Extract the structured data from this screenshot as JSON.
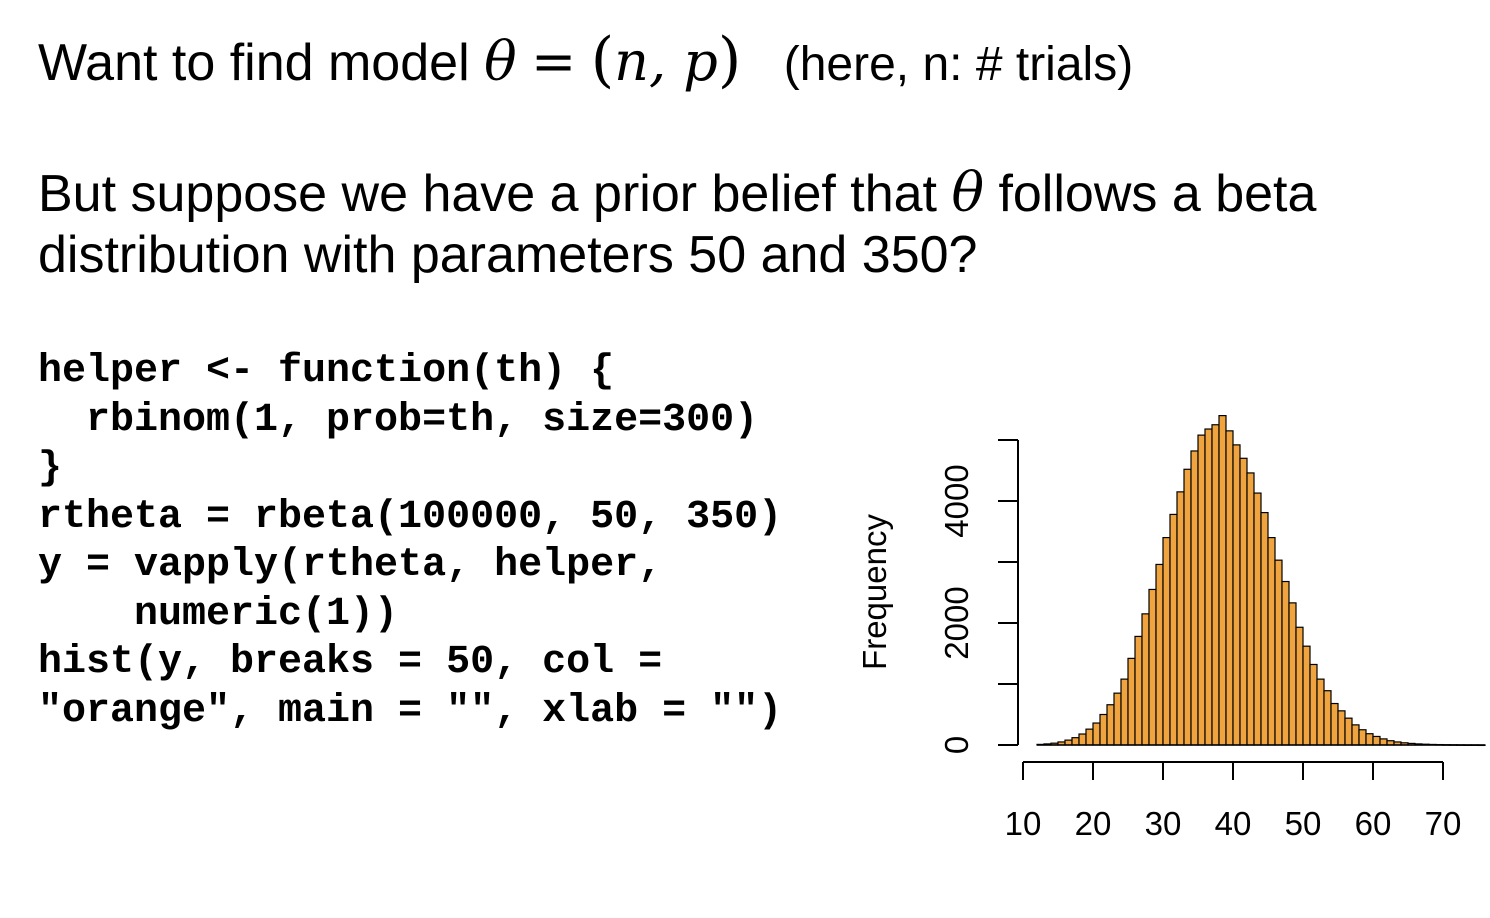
{
  "heading": {
    "prefix": "Want to find model",
    "theta": "θ",
    "equals": "=",
    "open_paren": "(",
    "tuple": "n, p",
    "close_paren": ")",
    "note": "(here, n: # trials)"
  },
  "question": {
    "line1_before": "But suppose we have a prior belief that",
    "theta": "θ",
    "line1_after": "follows a beta",
    "line2": "distribution with parameters 50 and 350?"
  },
  "code_lines": [
    "helper <- function(th) {",
    "  rbinom(1, prob=th, size=300)",
    "}",
    "",
    "rtheta = rbeta(100000, 50, 350)",
    "",
    "y = vapply(rtheta, helper,",
    "    numeric(1))",
    "",
    "hist(y, breaks = 50, col =",
    "\"orange\", main = \"\", xlab = \"\")"
  ],
  "chart_data": {
    "type": "bar",
    "title": "",
    "xlabel": "",
    "ylabel": "Frequency",
    "bar_color": "#F0A43F",
    "border_color": "#000000",
    "xlim": [
      10,
      75
    ],
    "ylim": [
      0,
      5000
    ],
    "x_ticks": [
      10,
      20,
      30,
      40,
      50,
      60,
      70
    ],
    "y_ticks": [
      0,
      1000,
      2000,
      3000,
      4000,
      5000
    ],
    "y_tick_labels": [
      "0",
      "",
      "2000",
      "",
      "4000",
      ""
    ],
    "bin_width": 1,
    "bin_starts": [
      12,
      13,
      14,
      15,
      16,
      17,
      18,
      19,
      20,
      21,
      22,
      23,
      24,
      25,
      26,
      27,
      28,
      29,
      30,
      31,
      32,
      33,
      34,
      35,
      36,
      37,
      38,
      39,
      40,
      41,
      42,
      43,
      44,
      45,
      46,
      47,
      48,
      49,
      50,
      51,
      52,
      53,
      54,
      55,
      56,
      57,
      58,
      59,
      60,
      61,
      62,
      63,
      64,
      65,
      66,
      67,
      68,
      69,
      70,
      71,
      72,
      73,
      74,
      75
    ],
    "counts": [
      10,
      18,
      30,
      50,
      80,
      120,
      180,
      260,
      360,
      500,
      660,
      850,
      1080,
      1420,
      1780,
      2150,
      2550,
      2960,
      3400,
      3780,
      4150,
      4520,
      4820,
      5080,
      5180,
      5250,
      5400,
      5150,
      4920,
      4700,
      4460,
      4130,
      3810,
      3400,
      3030,
      2680,
      2330,
      1930,
      1620,
      1320,
      1080,
      890,
      680,
      560,
      440,
      330,
      250,
      185,
      140,
      100,
      70,
      50,
      36,
      26,
      18,
      13,
      9,
      7,
      5,
      4,
      3,
      2,
      2,
      1
    ]
  }
}
